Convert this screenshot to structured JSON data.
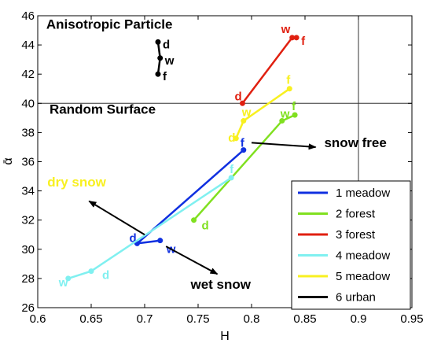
{
  "chart_data": {
    "type": "line",
    "xlabel": "H",
    "ylabel": "ᾱ",
    "xlim": [
      0.6,
      0.95
    ],
    "ylim": [
      26,
      46
    ],
    "x_ticks": [
      "0.6",
      "0.65",
      "0.7",
      "0.75",
      "0.8",
      "0.85",
      "0.9",
      "0.95"
    ],
    "y_ticks": [
      "26",
      "28",
      "30",
      "32",
      "34",
      "36",
      "38",
      "40",
      "42",
      "44",
      "46"
    ],
    "grid": false,
    "legend_position": "lower-right",
    "reference_lines": {
      "x": 0.9,
      "y": 40
    },
    "series": [
      {
        "name": "1 meadow",
        "color": "#1030e0",
        "points": [
          {
            "x": 0.7145,
            "y": 30.6,
            "label": "w"
          },
          {
            "x": 0.693,
            "y": 30.4,
            "label": "d"
          },
          {
            "x": 0.7925,
            "y": 36.8,
            "label": "f"
          }
        ]
      },
      {
        "name": "2 forest",
        "color": "#80e020",
        "points": [
          {
            "x": 0.746,
            "y": 32.0,
            "label": "d"
          },
          {
            "x": 0.8285,
            "y": 38.8,
            "label": "w"
          },
          {
            "x": 0.8405,
            "y": 39.2,
            "label": "f"
          }
        ]
      },
      {
        "name": "3 forest",
        "color": "#e02010",
        "points": [
          {
            "x": 0.7915,
            "y": 40.0,
            "label": "d"
          },
          {
            "x": 0.838,
            "y": 44.5,
            "label": "w"
          },
          {
            "x": 0.842,
            "y": 44.5,
            "label": "f"
          }
        ]
      },
      {
        "name": "4 meadow",
        "color": "#80f0f0",
        "points": [
          {
            "x": 0.6285,
            "y": 28.0,
            "label": "w"
          },
          {
            "x": 0.65,
            "y": 28.5,
            "label": "d"
          },
          {
            "x": 0.781,
            "y": 34.9,
            "label": "f"
          }
        ]
      },
      {
        "name": "5 meadow",
        "color": "#f8f020",
        "points": [
          {
            "x": 0.7855,
            "y": 37.6,
            "label": "d"
          },
          {
            "x": 0.7925,
            "y": 38.8,
            "label": "w"
          },
          {
            "x": 0.8355,
            "y": 41.0,
            "label": "f"
          }
        ]
      },
      {
        "name": "6 urban",
        "color": "#000000",
        "points": [
          {
            "x": 0.7125,
            "y": 44.2,
            "label": "d"
          },
          {
            "x": 0.7145,
            "y": 43.1,
            "label": "w"
          },
          {
            "x": 0.7125,
            "y": 42.0,
            "label": "f"
          }
        ]
      }
    ],
    "annotations": [
      {
        "text": "Anisotropic Particle",
        "x": 0.608,
        "y": 45.1,
        "color": "#000000"
      },
      {
        "text": "Random Surface",
        "x": 0.611,
        "y": 39.3,
        "color": "#000000"
      },
      {
        "text": "snow free",
        "x": 0.868,
        "y": 37.0,
        "color": "#000000"
      },
      {
        "text": "dry snow",
        "x": 0.609,
        "y": 34.3,
        "color": "#f8f020"
      },
      {
        "text": "wet snow",
        "x": 0.743,
        "y": 27.3,
        "color": "#000000"
      }
    ],
    "arrows": [
      {
        "from": [
          0.8,
          37.3
        ],
        "to": [
          0.86,
          37.0
        ]
      },
      {
        "from": [
          0.7,
          31.0
        ],
        "to": [
          0.648,
          33.3
        ]
      },
      {
        "from": [
          0.72,
          30.2
        ],
        "to": [
          0.768,
          28.3
        ]
      }
    ]
  }
}
